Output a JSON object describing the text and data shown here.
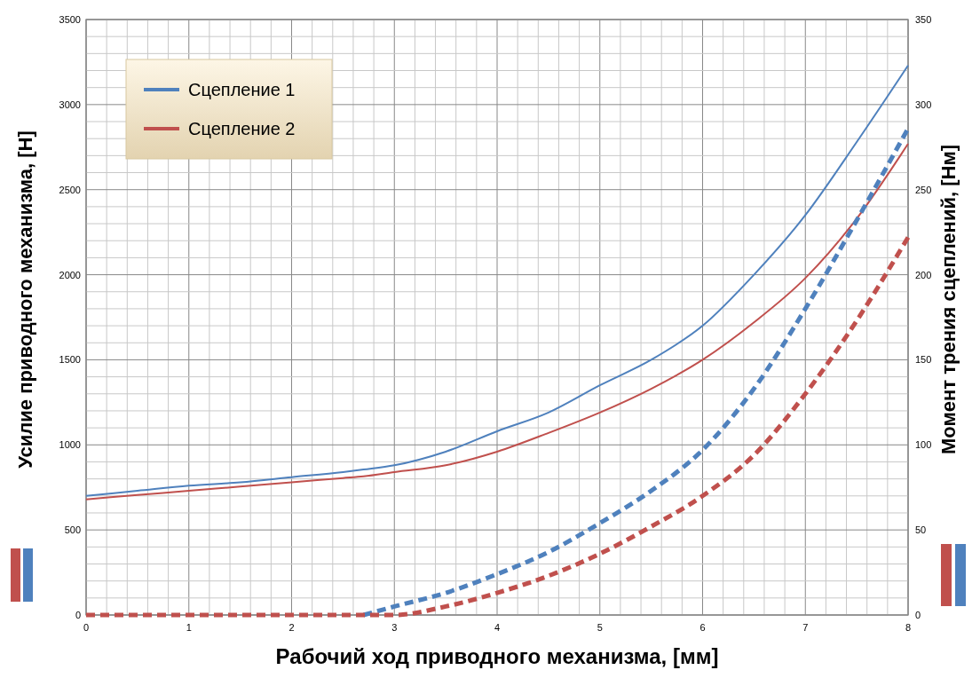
{
  "chart_data": {
    "type": "line",
    "xlabel": "Рабочий ход приводного механизма, [мм]",
    "ylabel": "Усилие приводного механизма, [Н]",
    "y2label": "Момент трения сцеплений, [Нм]",
    "x": [
      0,
      0.5,
      1,
      1.5,
      2,
      2.5,
      2.7,
      3,
      3.5,
      4,
      4.5,
      5,
      5.5,
      6,
      6.5,
      7,
      7.5,
      8
    ],
    "series": [
      {
        "name": "Сцепление 1",
        "color": "#4f81bd",
        "values": [
          700,
          730,
          760,
          780,
          810,
          840,
          855,
          880,
          960,
          1080,
          1190,
          1350,
          1500,
          1700,
          2000,
          2350,
          2780,
          3230
        ]
      },
      {
        "name": "Сцепление 2",
        "color": "#c0504d",
        "values": [
          680,
          705,
          730,
          755,
          780,
          805,
          815,
          840,
          880,
          960,
          1070,
          1190,
          1330,
          1500,
          1720,
          1980,
          2330,
          2770
        ]
      },
      {
        "color": "#4f81bd",
        "axis": "y2",
        "line_style": "dashed",
        "values": [
          null,
          null,
          null,
          null,
          null,
          null,
          0,
          5,
          13,
          24,
          37,
          54,
          73,
          97,
          133,
          180,
          232,
          286
        ]
      },
      {
        "color": "#c0504d",
        "axis": "y2",
        "line_style": "dashed",
        "values": [
          0,
          0,
          0,
          0,
          0,
          0,
          0,
          0,
          5,
          13,
          23,
          36,
          52,
          70,
          94,
          130,
          173,
          222
        ]
      }
    ],
    "xlim": [
      0,
      8
    ],
    "xticks": [
      0,
      {
        "value": 0.2,
        "label": null
      },
      {
        "value": 0.4,
        "label": null
      },
      {
        "value": 0.6,
        "label": null
      },
      {
        "value": 0.8,
        "label": null
      },
      1,
      {
        "value": 1.2,
        "label": null
      },
      {
        "value": 1.4,
        "label": null
      },
      {
        "value": 1.6,
        "label": null
      },
      {
        "value": 1.8,
        "label": null
      },
      2,
      {
        "value": 2.2,
        "label": null
      },
      {
        "value": 2.4,
        "label": null
      },
      {
        "value": 2.6,
        "label": null
      },
      {
        "value": 2.8,
        "label": null
      },
      3,
      {
        "value": 3.2,
        "label": null
      },
      {
        "value": 3.4,
        "label": null
      },
      {
        "value": 3.6,
        "label": null
      },
      {
        "value": 3.8,
        "label": null
      },
      4,
      {
        "value": 4.2,
        "label": null
      },
      {
        "value": 4.4,
        "label": null
      },
      {
        "value": 4.6,
        "label": null
      },
      {
        "value": 4.8,
        "label": null
      },
      5,
      {
        "value": 5.2,
        "label": null
      },
      {
        "value": 5.4,
        "label": null
      },
      {
        "value": 5.6,
        "label": null
      },
      {
        "value": 5.8,
        "label": null
      },
      6,
      {
        "value": 6.2,
        "label": null
      },
      {
        "value": 6.4,
        "label": null
      },
      {
        "value": 6.6,
        "label": null
      },
      {
        "value": 6.8,
        "label": null
      },
      7,
      {
        "value": 7.2,
        "label": null
      },
      {
        "value": 7.4,
        "label": null
      },
      {
        "value": 7.6,
        "label": null
      },
      {
        "value": 7.8,
        "label": null
      },
      8
    ],
    "ylim": [
      0,
      3500
    ],
    "yticks": [
      0,
      {
        "value": 100,
        "label": null
      },
      {
        "value": 200,
        "label": null
      },
      {
        "value": 300,
        "label": null
      },
      {
        "value": 400,
        "label": null
      },
      500,
      {
        "value": 600,
        "label": null
      },
      {
        "value": 700,
        "label": null
      },
      {
        "value": 800,
        "label": null
      },
      {
        "value": 900,
        "label": null
      },
      1000,
      {
        "value": 1100,
        "label": null
      },
      {
        "value": 1200,
        "label": null
      },
      {
        "value": 1300,
        "label": null
      },
      {
        "value": 1400,
        "label": null
      },
      1500,
      {
        "value": 1600,
        "label": null
      },
      {
        "value": 1700,
        "label": null
      },
      {
        "value": 1800,
        "label": null
      },
      {
        "value": 1900,
        "label": null
      },
      2000,
      {
        "value": 2100,
        "label": null
      },
      {
        "value": 2200,
        "label": null
      },
      {
        "value": 2300,
        "label": null
      },
      {
        "value": 2400,
        "label": null
      },
      2500,
      {
        "value": 2600,
        "label": null
      },
      {
        "value": 2700,
        "label": null
      },
      {
        "value": 2800,
        "label": null
      },
      {
        "value": 2900,
        "label": null
      },
      3000,
      {
        "value": 3100,
        "label": null
      },
      {
        "value": 3200,
        "label": null
      },
      {
        "value": 3300,
        "label": null
      },
      {
        "value": 3400,
        "label": null
      },
      3500
    ],
    "y2lim": [
      0,
      350
    ],
    "y2ticks": [
      0,
      50,
      100,
      150,
      200,
      250,
      300,
      350
    ],
    "grid": true,
    "legend": "top left",
    "line_style": "solid"
  }
}
